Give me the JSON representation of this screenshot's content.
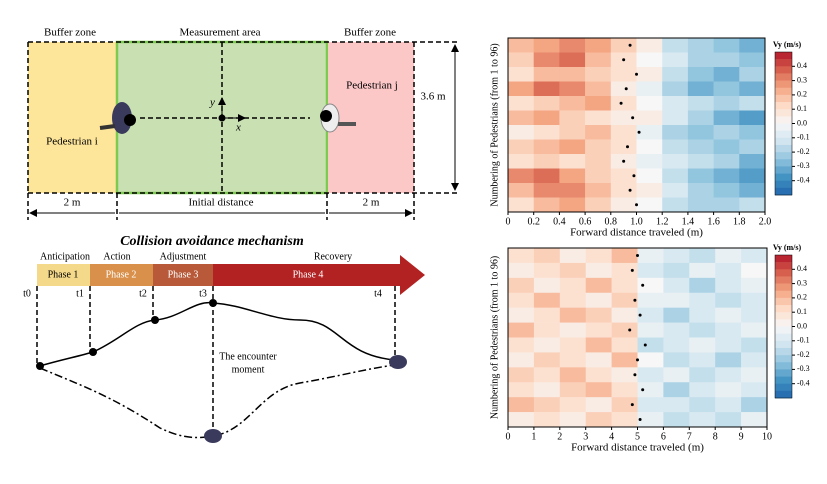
{
  "diagram_top": {
    "buffer_left": "Buffer zone",
    "measurement": "Measurement area",
    "buffer_right": "Buffer zone",
    "pedestrian_i": "Pedestrian i",
    "pedestrian_j": "Pedestrian j",
    "width": "3.6 m",
    "axis_y": "y",
    "axis_x": "x",
    "dim_left": "2 m",
    "dim_middle": "Initial distance",
    "dim_right": "2 m"
  },
  "diagram_bottom": {
    "title": "Collision avoidance mechanism",
    "stages": [
      "Anticipation",
      "Action",
      "Adjustment",
      "Recovery"
    ],
    "phases": [
      "Phase 1",
      "Phase 2",
      "Phase 3",
      "Phase 4"
    ],
    "times": [
      "t0",
      "t1",
      "t2",
      "t3",
      "t4"
    ],
    "encounter": [
      "The encounter",
      "moment"
    ]
  },
  "chart_data": [
    {
      "type": "heatmap",
      "xlabel": "Forward distance traveled (m)",
      "ylabel": "Numbering of Pedestrians (from 1 to 96)",
      "colorbar_title": "Vy (m/s)",
      "xlim": [
        0,
        2.0
      ],
      "xticks": [
        0,
        0.2,
        0.4,
        0.6,
        0.8,
        {
          "value": 1.0,
          "label": "1.0"
        },
        1.2,
        1.4,
        1.6,
        1.8,
        {
          "value": 2.0,
          "label": "2.0"
        }
      ],
      "clim": [
        -0.5,
        0.5
      ],
      "cticks": [
        0.4,
        0.3,
        0.2,
        0.1,
        {
          "value": 0,
          "label": "0.0"
        },
        -0.1,
        -0.2,
        -0.3,
        -0.4
      ],
      "colormap": [
        "#2166ac",
        "#4393c3",
        "#92c5de",
        "#d1e5f0",
        "#f7f7f7",
        "#fddbc7",
        "#f4a582",
        "#d6604d",
        "#b2182b"
      ],
      "z": [
        [
          0.2,
          0.25,
          0.3,
          0.25,
          0.15,
          0.05,
          -0.15,
          -0.2,
          -0.25,
          -0.3
        ],
        [
          0.15,
          0.3,
          0.35,
          0.2,
          0.1,
          0,
          -0.1,
          -0.2,
          -0.2,
          -0.25
        ],
        [
          0.1,
          0.2,
          0.2,
          0.15,
          0.1,
          0.05,
          -0.15,
          -0.25,
          -0.3,
          -0.2
        ],
        [
          0.25,
          0.35,
          0.3,
          0.2,
          0.05,
          -0.05,
          -0.2,
          -0.3,
          -0.25,
          -0.3
        ],
        [
          0.1,
          0.15,
          0.2,
          0.25,
          0.1,
          0,
          -0.1,
          -0.15,
          -0.2,
          -0.15
        ],
        [
          0.2,
          0.25,
          0.15,
          0.1,
          0.05,
          0.05,
          -0.1,
          -0.2,
          -0.3,
          -0.35
        ],
        [
          0.05,
          0.1,
          0.15,
          0.2,
          0.1,
          -0.05,
          -0.2,
          -0.25,
          -0.2,
          -0.25
        ],
        [
          0.15,
          0.2,
          0.25,
          0.15,
          0.1,
          0,
          -0.15,
          -0.2,
          -0.25,
          -0.2
        ],
        [
          0.1,
          0.15,
          0.1,
          0.15,
          0.05,
          -0.05,
          -0.1,
          -0.15,
          -0.2,
          -0.3
        ],
        [
          0.3,
          0.35,
          0.25,
          0.15,
          0.1,
          0,
          -0.15,
          -0.25,
          -0.3,
          -0.35
        ],
        [
          0.2,
          0.3,
          0.3,
          0.2,
          0.1,
          0.05,
          -0.1,
          -0.2,
          -0.25,
          -0.3
        ],
        [
          0.1,
          0.2,
          0.25,
          0.15,
          0.05,
          0,
          -0.15,
          -0.2,
          -0.2,
          -0.15
        ]
      ],
      "encounter_x": [
        0.95,
        0.9,
        1.0,
        0.92,
        0.88,
        0.97,
        1.02,
        0.93,
        0.9,
        0.98,
        0.95,
        1.0
      ]
    },
    {
      "type": "heatmap",
      "xlabel": "Forward distance traveled (m)",
      "ylabel": "Numbering of Pedestrians (from 1 to 96)",
      "colorbar_title": "Vy (m/s)",
      "xlim": [
        0,
        10
      ],
      "xticks": [
        0,
        1,
        2,
        3,
        4,
        5,
        6,
        7,
        8,
        9,
        10
      ],
      "clim": [
        -0.5,
        0.5
      ],
      "cticks": [
        0.4,
        0.3,
        0.2,
        0.1,
        {
          "value": 0,
          "label": "0.0"
        },
        -0.1,
        -0.2,
        -0.3,
        -0.4
      ],
      "colormap": [
        "#2166ac",
        "#4393c3",
        "#92c5de",
        "#d1e5f0",
        "#f7f7f7",
        "#fddbc7",
        "#f4a582",
        "#d6604d",
        "#b2182b"
      ],
      "z": [
        [
          0.1,
          0.15,
          0.05,
          0.1,
          0.2,
          -0.05,
          -0.1,
          -0.15,
          -0.05,
          -0.1
        ],
        [
          0.05,
          0.1,
          0.15,
          0.05,
          0.1,
          -0.1,
          -0.15,
          -0.05,
          -0.1,
          0
        ],
        [
          0.15,
          0.05,
          0.1,
          0.2,
          0.1,
          0,
          -0.1,
          -0.2,
          -0.1,
          -0.05
        ],
        [
          0.1,
          0.2,
          0.1,
          0.05,
          0.15,
          -0.05,
          -0.05,
          -0.1,
          -0.15,
          -0.1
        ],
        [
          0.05,
          0.1,
          0.2,
          0.15,
          0.05,
          -0.1,
          -0.2,
          -0.1,
          -0.05,
          -0.1
        ],
        [
          0.2,
          0.1,
          0.05,
          0.1,
          0.15,
          -0.05,
          -0.1,
          -0.15,
          -0.1,
          -0.05
        ],
        [
          0.1,
          0.05,
          0.1,
          0.2,
          0.1,
          -0.15,
          -0.1,
          -0.05,
          -0.1,
          -0.15
        ],
        [
          0.05,
          0.15,
          0.1,
          0.05,
          0.2,
          0,
          -0.15,
          -0.1,
          -0.2,
          -0.1
        ],
        [
          0.15,
          0.1,
          0.2,
          0.1,
          0.05,
          -0.1,
          -0.05,
          -0.15,
          -0.1,
          -0.05
        ],
        [
          0.1,
          0.05,
          0.15,
          0.2,
          0.1,
          -0.05,
          -0.2,
          -0.1,
          -0.05,
          -0.1
        ],
        [
          0.2,
          0.15,
          0.1,
          0.05,
          0.15,
          -0.1,
          -0.1,
          -0.15,
          -0.1,
          -0.2
        ],
        [
          0.05,
          0.1,
          0.05,
          0.15,
          0.1,
          -0.05,
          -0.15,
          -0.1,
          -0.15,
          -0.05
        ]
      ],
      "encounter_x": [
        5.0,
        4.8,
        5.2,
        4.9,
        5.1,
        4.7,
        5.3,
        5.0,
        4.9,
        5.2,
        4.8,
        5.1
      ]
    }
  ]
}
